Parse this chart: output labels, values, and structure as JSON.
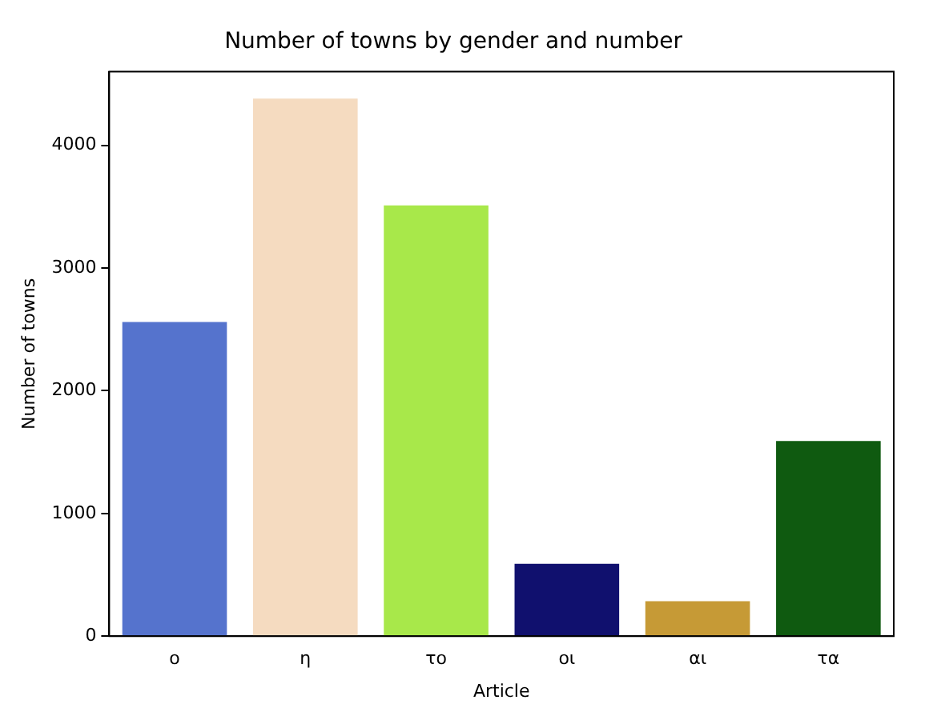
{
  "chart_data": {
    "type": "bar",
    "title": "Number of towns by gender and number",
    "xlabel": "Article",
    "ylabel": "Number of towns",
    "categories": [
      "ο",
      "η",
      "το",
      "οι",
      "αι",
      "τα"
    ],
    "values": [
      2560,
      4380,
      3510,
      590,
      285,
      1590
    ],
    "colors": [
      "#5573cd",
      "#f5dbc0",
      "#a8e84a",
      "#10106e",
      "#c69a36",
      "#0f5a10"
    ],
    "ylim": [
      0,
      4600
    ],
    "yticks": [
      0,
      1000,
      2000,
      3000,
      4000
    ],
    "grid": false,
    "legend": false
  }
}
